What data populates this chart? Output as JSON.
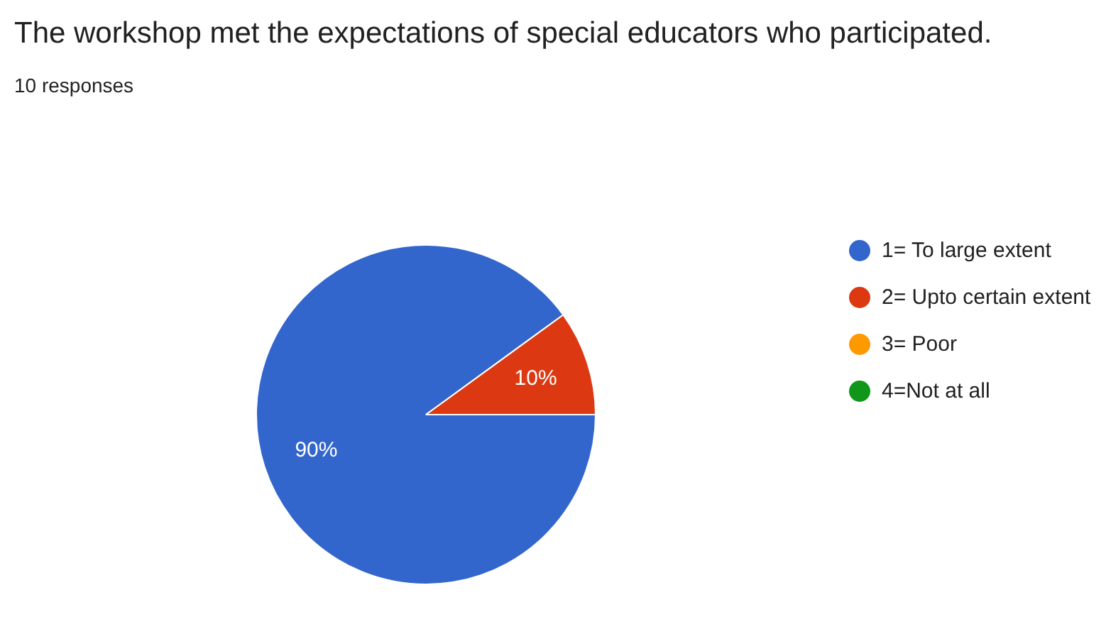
{
  "chart_data": {
    "type": "pie",
    "title": "The workshop met the expectations of special educators who participated.",
    "subtitle": "10 responses",
    "categories": [
      "1= To large extent",
      "2= Upto certain extent",
      "3= Poor",
      "4=Not at all"
    ],
    "values": [
      90,
      10,
      0,
      0
    ],
    "colors": [
      "#3366cc",
      "#dc3912",
      "#ff9900",
      "#109618"
    ],
    "value_labels": [
      "90%",
      "10%",
      null,
      null
    ],
    "legend": "right"
  }
}
